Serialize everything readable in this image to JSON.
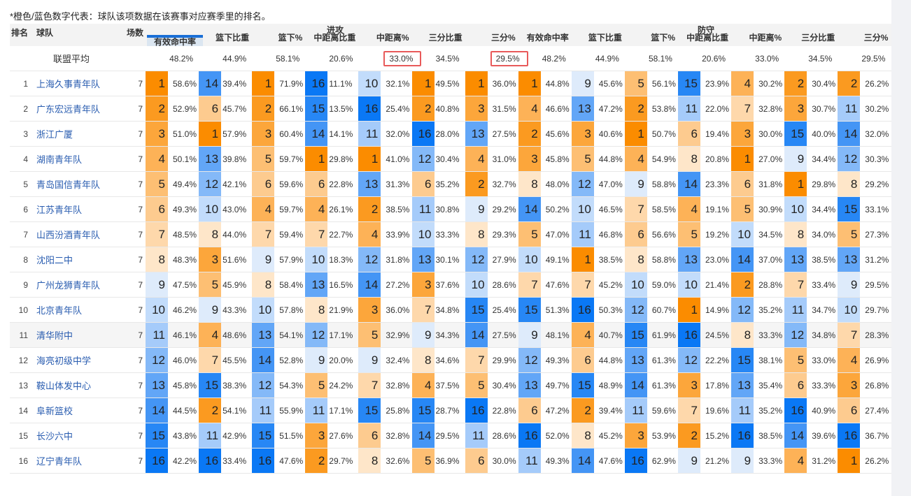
{
  "note": "*橙色/蓝色数字代表：球队该项数据在该赛事对应赛季里的排名。",
  "header": {
    "rank": "排名",
    "team": "球队",
    "games": "场数",
    "group_offense": "进攻",
    "group_defense": "防守",
    "columns": [
      "有效命中率",
      "篮下比重",
      "篮下%",
      "中距离比重",
      "中距离%",
      "三分比重",
      "三分%",
      "有效命中率",
      "篮下比重",
      "篮下%",
      "中距离比重",
      "中距离%",
      "三分比重",
      "三分%"
    ],
    "sorted_column_index": 0
  },
  "league_avg": {
    "label": "联盟平均",
    "values": [
      "48.2%",
      "44.9%",
      "58.1%",
      "20.6%",
      "33.0%",
      "34.5%",
      "29.5%",
      "48.2%",
      "44.9%",
      "58.1%",
      "20.6%",
      "33.0%",
      "34.5%",
      "29.5%"
    ],
    "highlighted_indices": [
      4,
      6
    ]
  },
  "rank_colors": {
    "1": "#fb8c00",
    "2": "#fb9a20",
    "3": "#fca63b",
    "4": "#fdb257",
    "5": "#fdbf73",
    "6": "#fdcb8f",
    "7": "#fed8ab",
    "8": "#fee6c9",
    "9": "#deebfb",
    "10": "#c2dcfb",
    "11": "#a5cbfa",
    "12": "#84b9f8",
    "13": "#62a6f7",
    "14": "#4495f5",
    "15": "#2787f5",
    "16": "#0a78f5"
  },
  "rows": [
    {
      "rank": "1",
      "team": "上海久事青年队",
      "games": "7",
      "stats": [
        [
          1,
          "58.6%"
        ],
        [
          14,
          "39.4%"
        ],
        [
          1,
          "71.9%"
        ],
        [
          16,
          "11.1%"
        ],
        [
          10,
          "32.1%"
        ],
        [
          1,
          "49.5%"
        ],
        [
          1,
          "36.0%"
        ],
        [
          1,
          "44.8%"
        ],
        [
          9,
          "45.6%"
        ],
        [
          5,
          "56.1%"
        ],
        [
          15,
          "23.9%"
        ],
        [
          4,
          "30.2%"
        ],
        [
          2,
          "30.4%"
        ],
        [
          2,
          "26.2%"
        ]
      ]
    },
    {
      "rank": "2",
      "team": "广东宏远青年队",
      "games": "7",
      "stats": [
        [
          2,
          "52.9%"
        ],
        [
          6,
          "45.7%"
        ],
        [
          2,
          "66.1%"
        ],
        [
          15,
          "13.5%"
        ],
        [
          16,
          "25.4%"
        ],
        [
          2,
          "40.8%"
        ],
        [
          3,
          "31.5%"
        ],
        [
          4,
          "46.6%"
        ],
        [
          13,
          "47.2%"
        ],
        [
          2,
          "53.8%"
        ],
        [
          11,
          "22.0%"
        ],
        [
          7,
          "32.8%"
        ],
        [
          3,
          "30.7%"
        ],
        [
          11,
          "30.2%"
        ]
      ]
    },
    {
      "rank": "3",
      "team": "浙江广厦",
      "games": "7",
      "stats": [
        [
          3,
          "51.0%"
        ],
        [
          1,
          "57.9%"
        ],
        [
          3,
          "60.4%"
        ],
        [
          14,
          "14.1%"
        ],
        [
          11,
          "32.0%"
        ],
        [
          16,
          "28.0%"
        ],
        [
          13,
          "27.5%"
        ],
        [
          2,
          "45.6%"
        ],
        [
          3,
          "40.6%"
        ],
        [
          1,
          "50.7%"
        ],
        [
          6,
          "19.4%"
        ],
        [
          3,
          "30.0%"
        ],
        [
          15,
          "40.0%"
        ],
        [
          14,
          "32.0%"
        ]
      ]
    },
    {
      "rank": "4",
      "team": "湖南青年队",
      "games": "7",
      "stats": [
        [
          4,
          "50.1%"
        ],
        [
          13,
          "39.8%"
        ],
        [
          5,
          "59.7%"
        ],
        [
          1,
          "29.8%"
        ],
        [
          1,
          "41.0%"
        ],
        [
          12,
          "30.4%"
        ],
        [
          4,
          "31.0%"
        ],
        [
          3,
          "45.8%"
        ],
        [
          5,
          "44.8%"
        ],
        [
          4,
          "54.9%"
        ],
        [
          8,
          "20.8%"
        ],
        [
          1,
          "27.0%"
        ],
        [
          9,
          "34.4%"
        ],
        [
          12,
          "30.3%"
        ]
      ]
    },
    {
      "rank": "5",
      "team": "青岛国信青年队",
      "games": "7",
      "stats": [
        [
          5,
          "49.4%"
        ],
        [
          12,
          "42.1%"
        ],
        [
          6,
          "59.6%"
        ],
        [
          6,
          "22.8%"
        ],
        [
          13,
          "31.3%"
        ],
        [
          6,
          "35.2%"
        ],
        [
          2,
          "32.7%"
        ],
        [
          8,
          "48.0%"
        ],
        [
          12,
          "47.0%"
        ],
        [
          9,
          "58.8%"
        ],
        [
          14,
          "23.3%"
        ],
        [
          6,
          "31.8%"
        ],
        [
          1,
          "29.8%"
        ],
        [
          8,
          "29.2%"
        ]
      ]
    },
    {
      "rank": "6",
      "team": "江苏青年队",
      "games": "7",
      "stats": [
        [
          6,
          "49.3%"
        ],
        [
          10,
          "43.0%"
        ],
        [
          4,
          "59.7%"
        ],
        [
          4,
          "26.1%"
        ],
        [
          2,
          "38.5%"
        ],
        [
          11,
          "30.8%"
        ],
        [
          9,
          "29.2%"
        ],
        [
          14,
          "50.2%"
        ],
        [
          10,
          "46.5%"
        ],
        [
          7,
          "58.5%"
        ],
        [
          4,
          "19.1%"
        ],
        [
          5,
          "30.9%"
        ],
        [
          10,
          "34.4%"
        ],
        [
          15,
          "33.1%"
        ]
      ]
    },
    {
      "rank": "7",
      "team": "山西汾酒青年队",
      "games": "7",
      "stats": [
        [
          7,
          "48.5%"
        ],
        [
          8,
          "44.0%"
        ],
        [
          7,
          "59.4%"
        ],
        [
          7,
          "22.7%"
        ],
        [
          4,
          "33.9%"
        ],
        [
          10,
          "33.3%"
        ],
        [
          8,
          "29.3%"
        ],
        [
          5,
          "47.0%"
        ],
        [
          11,
          "46.8%"
        ],
        [
          6,
          "56.6%"
        ],
        [
          5,
          "19.2%"
        ],
        [
          10,
          "34.5%"
        ],
        [
          8,
          "34.0%"
        ],
        [
          5,
          "27.3%"
        ]
      ]
    },
    {
      "rank": "8",
      "team": "沈阳二中",
      "games": "7",
      "stats": [
        [
          8,
          "48.3%"
        ],
        [
          3,
          "51.6%"
        ],
        [
          9,
          "57.9%"
        ],
        [
          10,
          "18.3%"
        ],
        [
          12,
          "31.8%"
        ],
        [
          13,
          "30.1%"
        ],
        [
          12,
          "27.9%"
        ],
        [
          10,
          "49.1%"
        ],
        [
          1,
          "38.5%"
        ],
        [
          8,
          "58.8%"
        ],
        [
          13,
          "23.0%"
        ],
        [
          14,
          "37.0%"
        ],
        [
          13,
          "38.5%"
        ],
        [
          13,
          "31.2%"
        ]
      ]
    },
    {
      "rank": "9",
      "team": "广州龙狮青年队",
      "games": "7",
      "stats": [
        [
          9,
          "47.5%"
        ],
        [
          5,
          "45.9%"
        ],
        [
          8,
          "58.4%"
        ],
        [
          13,
          "16.5%"
        ],
        [
          14,
          "27.2%"
        ],
        [
          3,
          "37.6%"
        ],
        [
          10,
          "28.6%"
        ],
        [
          7,
          "47.6%"
        ],
        [
          7,
          "45.2%"
        ],
        [
          10,
          "59.0%"
        ],
        [
          10,
          "21.4%"
        ],
        [
          2,
          "28.8%"
        ],
        [
          7,
          "33.4%"
        ],
        [
          9,
          "29.5%"
        ]
      ]
    },
    {
      "rank": "10",
      "team": "北京青年队",
      "games": "7",
      "stats": [
        [
          10,
          "46.2%"
        ],
        [
          9,
          "43.3%"
        ],
        [
          10,
          "57.8%"
        ],
        [
          8,
          "21.9%"
        ],
        [
          3,
          "36.0%"
        ],
        [
          7,
          "34.8%"
        ],
        [
          15,
          "25.4%"
        ],
        [
          15,
          "51.3%"
        ],
        [
          16,
          "50.3%"
        ],
        [
          12,
          "60.7%"
        ],
        [
          1,
          "14.9%"
        ],
        [
          12,
          "35.2%"
        ],
        [
          11,
          "34.7%"
        ],
        [
          10,
          "29.7%"
        ]
      ]
    },
    {
      "rank": "11",
      "team": "清华附中",
      "games": "7",
      "stats": [
        [
          11,
          "46.1%"
        ],
        [
          4,
          "48.6%"
        ],
        [
          13,
          "54.1%"
        ],
        [
          12,
          "17.1%"
        ],
        [
          5,
          "32.9%"
        ],
        [
          9,
          "34.3%"
        ],
        [
          14,
          "27.5%"
        ],
        [
          9,
          "48.1%"
        ],
        [
          4,
          "40.7%"
        ],
        [
          15,
          "61.9%"
        ],
        [
          16,
          "24.5%"
        ],
        [
          8,
          "33.3%"
        ],
        [
          12,
          "34.8%"
        ],
        [
          7,
          "28.3%"
        ]
      ]
    },
    {
      "rank": "12",
      "team": "海亮初级中学",
      "games": "7",
      "stats": [
        [
          12,
          "46.0%"
        ],
        [
          7,
          "45.5%"
        ],
        [
          14,
          "52.8%"
        ],
        [
          9,
          "20.0%"
        ],
        [
          9,
          "32.4%"
        ],
        [
          8,
          "34.6%"
        ],
        [
          7,
          "29.9%"
        ],
        [
          12,
          "49.3%"
        ],
        [
          6,
          "44.8%"
        ],
        [
          13,
          "61.3%"
        ],
        [
          12,
          "22.2%"
        ],
        [
          15,
          "38.1%"
        ],
        [
          5,
          "33.0%"
        ],
        [
          4,
          "26.9%"
        ]
      ]
    },
    {
      "rank": "13",
      "team": "鞍山体发中心",
      "games": "7",
      "stats": [
        [
          13,
          "45.8%"
        ],
        [
          15,
          "38.3%"
        ],
        [
          12,
          "54.3%"
        ],
        [
          5,
          "24.2%"
        ],
        [
          7,
          "32.8%"
        ],
        [
          4,
          "37.5%"
        ],
        [
          5,
          "30.4%"
        ],
        [
          13,
          "49.7%"
        ],
        [
          15,
          "48.9%"
        ],
        [
          14,
          "61.3%"
        ],
        [
          3,
          "17.8%"
        ],
        [
          13,
          "35.4%"
        ],
        [
          6,
          "33.3%"
        ],
        [
          3,
          "26.8%"
        ]
      ]
    },
    {
      "rank": "14",
      "team": "阜新篮校",
      "games": "7",
      "stats": [
        [
          14,
          "44.5%"
        ],
        [
          2,
          "54.1%"
        ],
        [
          11,
          "55.9%"
        ],
        [
          11,
          "17.1%"
        ],
        [
          15,
          "25.8%"
        ],
        [
          15,
          "28.7%"
        ],
        [
          16,
          "22.8%"
        ],
        [
          6,
          "47.2%"
        ],
        [
          2,
          "39.4%"
        ],
        [
          11,
          "59.6%"
        ],
        [
          7,
          "19.6%"
        ],
        [
          11,
          "35.2%"
        ],
        [
          16,
          "40.9%"
        ],
        [
          6,
          "27.4%"
        ]
      ]
    },
    {
      "rank": "15",
      "team": "长沙六中",
      "games": "7",
      "stats": [
        [
          15,
          "43.8%"
        ],
        [
          11,
          "42.9%"
        ],
        [
          15,
          "51.5%"
        ],
        [
          3,
          "27.6%"
        ],
        [
          6,
          "32.8%"
        ],
        [
          14,
          "29.5%"
        ],
        [
          11,
          "28.6%"
        ],
        [
          16,
          "52.0%"
        ],
        [
          8,
          "45.2%"
        ],
        [
          3,
          "53.9%"
        ],
        [
          2,
          "15.2%"
        ],
        [
          16,
          "38.5%"
        ],
        [
          14,
          "39.6%"
        ],
        [
          16,
          "36.7%"
        ]
      ]
    },
    {
      "rank": "16",
      "team": "辽宁青年队",
      "games": "7",
      "stats": [
        [
          16,
          "42.2%"
        ],
        [
          16,
          "33.4%"
        ],
        [
          16,
          "47.6%"
        ],
        [
          2,
          "29.7%"
        ],
        [
          8,
          "32.6%"
        ],
        [
          5,
          "36.9%"
        ],
        [
          6,
          "30.0%"
        ],
        [
          11,
          "49.3%"
        ],
        [
          14,
          "47.6%"
        ],
        [
          16,
          "62.9%"
        ],
        [
          9,
          "21.2%"
        ],
        [
          9,
          "33.3%"
        ],
        [
          4,
          "31.2%"
        ],
        [
          1,
          "26.2%"
        ]
      ]
    }
  ],
  "highlighted_row_index": 10
}
